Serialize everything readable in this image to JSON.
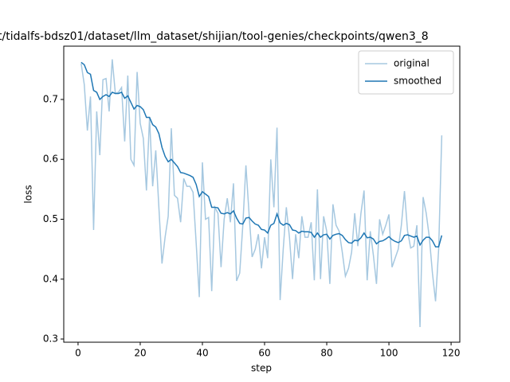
{
  "chart_data": {
    "type": "line",
    "title": "t/tidalfs-bdsz01/dataset/llm_dataset/shijian/tool-genies/checkpoints/qwen3_8",
    "x_label": "step",
    "y_label": "loss",
    "x": [
      1,
      2,
      3,
      4,
      5,
      6,
      7,
      8,
      9,
      10,
      11,
      12,
      13,
      14,
      15,
      16,
      17,
      18,
      19,
      20,
      21,
      22,
      23,
      24,
      25,
      26,
      27,
      28,
      29,
      30,
      31,
      32,
      33,
      34,
      35,
      36,
      37,
      38,
      39,
      40,
      41,
      42,
      43,
      44,
      45,
      46,
      47,
      48,
      49,
      50,
      51,
      52,
      53,
      54,
      55,
      56,
      57,
      58,
      59,
      60,
      61,
      62,
      63,
      64,
      65,
      66,
      67,
      68,
      69,
      70,
      71,
      72,
      73,
      74,
      75,
      76,
      77,
      78,
      79,
      80,
      81,
      82,
      83,
      84,
      85,
      86,
      87,
      88,
      89,
      90,
      91,
      92,
      93,
      94,
      95,
      96,
      97,
      98,
      99,
      100,
      101,
      102,
      103,
      104,
      105,
      106,
      107,
      108,
      109,
      110,
      111,
      112,
      113,
      114,
      115,
      116,
      117
    ],
    "series": [
      {
        "name": "original",
        "color": "#a6c8e0",
        "values": [
          0.76,
          0.725,
          0.648,
          0.705,
          0.482,
          0.68,
          0.607,
          0.733,
          0.735,
          0.68,
          0.767,
          0.71,
          0.712,
          0.72,
          0.63,
          0.74,
          0.6,
          0.59,
          0.746,
          0.66,
          0.635,
          0.548,
          0.67,
          0.555,
          0.615,
          0.52,
          0.426,
          0.47,
          0.505,
          0.652,
          0.54,
          0.535,
          0.495,
          0.568,
          0.555,
          0.555,
          0.545,
          0.46,
          0.37,
          0.595,
          0.5,
          0.503,
          0.38,
          0.52,
          0.51,
          0.42,
          0.5,
          0.535,
          0.495,
          0.56,
          0.397,
          0.41,
          0.49,
          0.59,
          0.51,
          0.437,
          0.45,
          0.475,
          0.418,
          0.47,
          0.435,
          0.6,
          0.52,
          0.653,
          0.365,
          0.45,
          0.52,
          0.47,
          0.4,
          0.475,
          0.435,
          0.505,
          0.47,
          0.47,
          0.495,
          0.398,
          0.55,
          0.4,
          0.505,
          0.48,
          0.392,
          0.525,
          0.49,
          0.48,
          0.445,
          0.405,
          0.418,
          0.445,
          0.51,
          0.455,
          0.51,
          0.548,
          0.398,
          0.48,
          0.44,
          0.392,
          0.5,
          0.475,
          0.49,
          0.508,
          0.42,
          0.435,
          0.45,
          0.49,
          0.547,
          0.48,
          0.452,
          0.455,
          0.49,
          0.32,
          0.537,
          0.51,
          0.47,
          0.41,
          0.363,
          0.45,
          0.64
        ]
      },
      {
        "name": "smoothed",
        "color": "#1f77b4",
        "values": [
          0.762,
          0.758,
          0.745,
          0.742,
          0.715,
          0.712,
          0.7,
          0.705,
          0.708,
          0.705,
          0.712,
          0.71,
          0.71,
          0.712,
          0.702,
          0.706,
          0.695,
          0.684,
          0.69,
          0.688,
          0.683,
          0.67,
          0.67,
          0.658,
          0.654,
          0.643,
          0.62,
          0.605,
          0.596,
          0.6,
          0.594,
          0.588,
          0.578,
          0.577,
          0.575,
          0.573,
          0.57,
          0.558,
          0.538,
          0.546,
          0.542,
          0.538,
          0.52,
          0.52,
          0.519,
          0.51,
          0.509,
          0.511,
          0.509,
          0.514,
          0.502,
          0.493,
          0.492,
          0.502,
          0.503,
          0.497,
          0.492,
          0.49,
          0.483,
          0.482,
          0.477,
          0.49,
          0.493,
          0.509,
          0.494,
          0.49,
          0.493,
          0.491,
          0.482,
          0.481,
          0.477,
          0.48,
          0.479,
          0.479,
          0.478,
          0.47,
          0.477,
          0.47,
          0.474,
          0.475,
          0.467,
          0.473,
          0.475,
          0.476,
          0.473,
          0.466,
          0.461,
          0.46,
          0.465,
          0.464,
          0.469,
          0.477,
          0.469,
          0.47,
          0.467,
          0.459,
          0.463,
          0.464,
          0.467,
          0.471,
          0.466,
          0.463,
          0.461,
          0.464,
          0.473,
          0.474,
          0.472,
          0.47,
          0.472,
          0.457,
          0.465,
          0.47,
          0.47,
          0.464,
          0.454,
          0.454,
          0.473
        ]
      }
    ],
    "xlim": [
      -4.6,
      122.8
    ],
    "ylim": [
      0.2947,
      0.789
    ],
    "xticks": [
      0,
      20,
      40,
      60,
      80,
      100,
      120
    ],
    "yticks": [
      0.3,
      0.4,
      0.5,
      0.6,
      0.7
    ],
    "legend": "upper right"
  }
}
